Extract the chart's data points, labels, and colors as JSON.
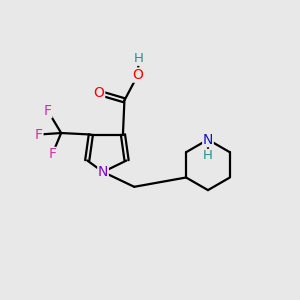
{
  "background_color": "#e8e8e8",
  "fig_size": [
    3.0,
    3.0
  ],
  "dpi": 100,
  "colors": {
    "bond": "#000000",
    "O": "#ff0000",
    "N_pyrrole": "#8800cc",
    "N_pip": "#1111cc",
    "F": "#cc33aa",
    "H": "#2a9090",
    "background": "#e8e8e8"
  }
}
